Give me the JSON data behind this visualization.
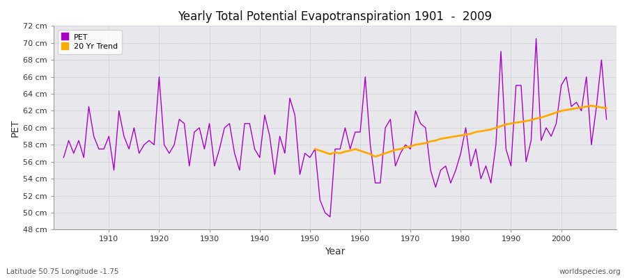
{
  "title": "Yearly Total Potential Evapotranspiration 1901  -  2009",
  "xlabel": "Year",
  "ylabel": "PET",
  "footnote_left": "Latitude 50.75 Longitude -1.75",
  "footnote_right": "worldspecies.org",
  "background_color": "#ffffff",
  "plot_bg_color": "#e8e8ec",
  "pet_color": "#aa00cc",
  "trend_color": "#ffaa00",
  "ylim": [
    48,
    72
  ],
  "yticks": [
    48,
    50,
    52,
    54,
    56,
    58,
    60,
    62,
    64,
    66,
    68,
    70,
    72
  ],
  "xmin": 1901,
  "xmax": 2009,
  "xticks": [
    1910,
    1920,
    1930,
    1940,
    1950,
    1960,
    1970,
    1980,
    1990,
    2000
  ],
  "years": [
    1901,
    1902,
    1903,
    1904,
    1905,
    1906,
    1907,
    1908,
    1909,
    1910,
    1911,
    1912,
    1913,
    1914,
    1915,
    1916,
    1917,
    1918,
    1919,
    1920,
    1921,
    1922,
    1923,
    1924,
    1925,
    1926,
    1927,
    1928,
    1929,
    1930,
    1931,
    1932,
    1933,
    1934,
    1935,
    1936,
    1937,
    1938,
    1939,
    1940,
    1941,
    1942,
    1943,
    1944,
    1945,
    1946,
    1947,
    1948,
    1949,
    1950,
    1951,
    1952,
    1953,
    1954,
    1955,
    1956,
    1957,
    1958,
    1959,
    1960,
    1961,
    1962,
    1963,
    1964,
    1965,
    1966,
    1967,
    1968,
    1969,
    1970,
    1971,
    1972,
    1973,
    1974,
    1975,
    1976,
    1977,
    1978,
    1979,
    1980,
    1981,
    1982,
    1983,
    1984,
    1985,
    1986,
    1987,
    1988,
    1989,
    1990,
    1991,
    1992,
    1993,
    1994,
    1995,
    1996,
    1997,
    1998,
    1999,
    2000,
    2001,
    2002,
    2003,
    2004,
    2005,
    2006,
    2007,
    2008,
    2009
  ],
  "pet": [
    56.5,
    58.5,
    57.0,
    58.5,
    56.5,
    62.5,
    59.0,
    57.5,
    57.5,
    59.0,
    55.0,
    62.0,
    59.0,
    57.5,
    60.0,
    57.0,
    58.0,
    58.5,
    58.0,
    66.0,
    58.0,
    57.0,
    58.0,
    61.0,
    60.5,
    55.5,
    59.5,
    60.0,
    57.5,
    60.5,
    55.5,
    57.5,
    60.0,
    60.5,
    57.0,
    55.0,
    60.5,
    60.5,
    57.5,
    56.5,
    61.5,
    59.0,
    54.5,
    59.0,
    57.0,
    63.5,
    61.5,
    54.5,
    57.0,
    56.5,
    57.5,
    51.5,
    50.0,
    49.5,
    57.5,
    57.5,
    60.0,
    57.5,
    59.5,
    59.5,
    66.0,
    58.0,
    53.5,
    53.5,
    60.0,
    61.0,
    55.5,
    57.0,
    58.0,
    57.5,
    62.0,
    60.5,
    60.0,
    55.0,
    53.0,
    55.0,
    55.5,
    53.5,
    55.0,
    57.0,
    60.0,
    55.5,
    57.5,
    54.0,
    55.5,
    53.5,
    58.0,
    69.0,
    57.5,
    55.5,
    65.0,
    65.0,
    56.0,
    58.5,
    70.5,
    58.5,
    60.0,
    59.0,
    60.5,
    65.0,
    66.0,
    62.5,
    63.0,
    62.0,
    66.0,
    58.0,
    62.5,
    68.0,
    61.0
  ],
  "trend_years": [
    1951,
    1952,
    1953,
    1954,
    1955,
    1956,
    1957,
    1958,
    1959,
    1960,
    1961,
    1962,
    1963,
    1964,
    1965,
    1966,
    1967,
    1968,
    1969,
    1970,
    1971,
    1972,
    1973,
    1974,
    1975,
    1976,
    1977,
    1978,
    1979,
    1980,
    1981,
    1982,
    1983,
    1984,
    1985,
    1986,
    1987,
    1988,
    1989,
    1990,
    1991,
    1992,
    1993,
    1994,
    1995,
    1996,
    1997,
    1998,
    1999,
    2000,
    2001,
    2002,
    2003,
    2004,
    2005,
    2006,
    2007,
    2008,
    2009
  ],
  "trend": [
    57.5,
    57.3,
    57.1,
    56.9,
    57.1,
    57.0,
    57.2,
    57.3,
    57.5,
    57.3,
    57.1,
    56.9,
    56.6,
    56.8,
    57.0,
    57.2,
    57.4,
    57.5,
    57.7,
    57.8,
    58.0,
    58.1,
    58.2,
    58.4,
    58.5,
    58.7,
    58.8,
    58.9,
    59.0,
    59.1,
    59.2,
    59.3,
    59.5,
    59.6,
    59.7,
    59.8,
    60.0,
    60.2,
    60.4,
    60.5,
    60.6,
    60.7,
    60.8,
    60.9,
    61.1,
    61.2,
    61.4,
    61.6,
    61.8,
    62.0,
    62.1,
    62.2,
    62.3,
    62.4,
    62.5,
    62.6,
    62.5,
    62.4,
    62.3
  ]
}
